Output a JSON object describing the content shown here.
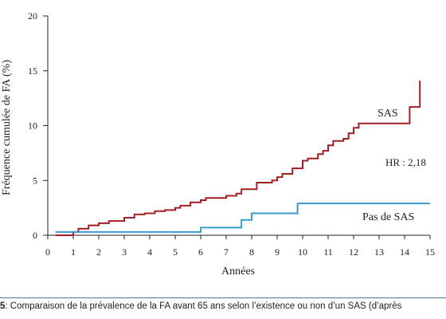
{
  "chart_data": {
    "type": "line",
    "step": true,
    "xlabel": "Années",
    "ylabel": "Fréquence cumulée de FA (%)",
    "xlim": [
      0,
      15
    ],
    "ylim": [
      0,
      20
    ],
    "x_ticks": [
      0,
      1,
      2,
      3,
      4,
      5,
      6,
      7,
      8,
      9,
      10,
      11,
      12,
      13,
      14,
      15
    ],
    "y_ticks": [
      0,
      5,
      10,
      15,
      20
    ],
    "grid": false,
    "series": [
      {
        "name": "SAS",
        "color": "#a31f24",
        "x": [
          0.3,
          1.0,
          1.2,
          1.6,
          2.0,
          2.4,
          3.0,
          3.4,
          3.8,
          4.2,
          4.6,
          5.0,
          5.2,
          5.6,
          6.0,
          6.2,
          7.0,
          7.4,
          7.6,
          8.0,
          8.2,
          8.6,
          8.8,
          9.0,
          9.2,
          9.4,
          9.6,
          10.0,
          10.2,
          10.6,
          10.8,
          11.0,
          11.2,
          11.6,
          11.8,
          12.0,
          12.2,
          13.0,
          14.2,
          14.6
        ],
        "y": [
          0.0,
          0.3,
          0.6,
          0.9,
          1.1,
          1.3,
          1.6,
          1.9,
          2.0,
          2.2,
          2.3,
          2.5,
          2.7,
          3.0,
          3.2,
          3.4,
          3.6,
          3.8,
          4.2,
          4.2,
          4.8,
          4.8,
          5.0,
          5.3,
          5.6,
          5.6,
          6.1,
          6.8,
          7.0,
          7.4,
          7.7,
          8.2,
          8.6,
          8.8,
          9.3,
          9.8,
          10.2,
          10.2,
          11.7,
          14.1
        ]
      },
      {
        "name": "Pas de SAS",
        "color": "#3a9ccf",
        "x": [
          0.3,
          6.0,
          7.6,
          7.8,
          8.0,
          9.8,
          15.0
        ],
        "y": [
          0.3,
          0.7,
          1.4,
          1.4,
          2.0,
          2.9,
          2.9
        ]
      }
    ],
    "annotations": {
      "sas": "SAS",
      "hr": "HR : 2,18",
      "no_sas": "Pas de SAS"
    }
  },
  "caption": {
    "number": "5",
    "text": ": Comparaison de la prévalence de la FA avant 65 ans selon l’existence ou non d’un SAS (d’après"
  }
}
